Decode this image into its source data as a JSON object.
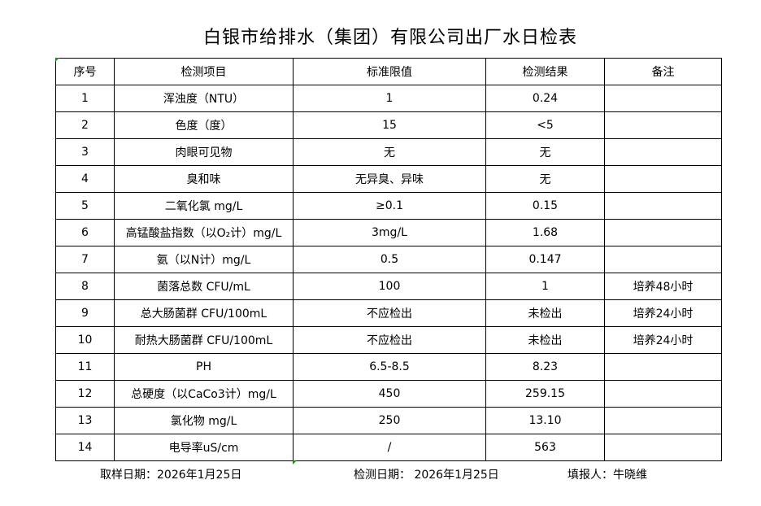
{
  "title": "白银市给排水（集团）有限公司出厂水日检表",
  "headers": [
    "序号",
    "检测项目",
    "标准限值",
    "检测结果",
    "备注"
  ],
  "rows": [
    [
      "1",
      "浑浊度（NTU）",
      "1",
      "0.24",
      ""
    ],
    [
      "2",
      "色度（度）",
      "15",
      "<5",
      ""
    ],
    [
      "3",
      "肉眼可见物",
      "无",
      "无",
      ""
    ],
    [
      "4",
      "臭和味",
      "无异臭、异味",
      "无",
      ""
    ],
    [
      "5",
      "二氧化氯 mg/L",
      "≥0.1",
      "0.15",
      ""
    ],
    [
      "6",
      "高锰酸盐指数（以O₂计）mg/L",
      "3mg/L",
      "1.68",
      ""
    ],
    [
      "7",
      "氨（以N计）mg/L",
      "0.5",
      "0.147",
      ""
    ],
    [
      "8",
      "菌落总数 CFU/mL",
      "100",
      "1",
      "培养48小时"
    ],
    [
      "9",
      "总大肠菌群 CFU/100mL",
      "不应检出",
      "未检出",
      "培养24小时"
    ],
    [
      "10",
      "耐热大肠菌群 CFU/100mL",
      "不应检出",
      "未检出",
      "培养24小时"
    ],
    [
      "11",
      "PH",
      "6.5-8.5",
      "8.23",
      ""
    ],
    [
      "12",
      "总硬度（以CaCo3计）mg/L",
      "450",
      "259.15",
      ""
    ],
    [
      "13",
      "氯化物 mg/L",
      "250",
      "13.10",
      ""
    ],
    [
      "14",
      "电导率uS/cm",
      "/",
      "563",
      ""
    ]
  ],
  "footer": {
    "sampling_date": "取样日期：2026年1月25日",
    "test_date": "检测日期： 2026年1月25日",
    "reporter": "填报人：牛晓维"
  },
  "colors": {
    "cell_marker": "#1a8a1a",
    "border": "#000000"
  }
}
